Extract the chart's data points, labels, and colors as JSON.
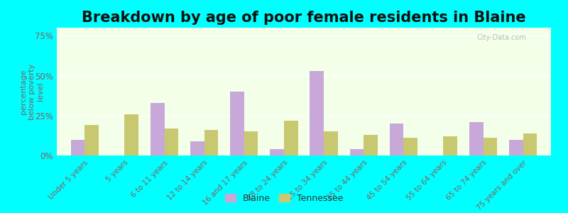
{
  "title": "Breakdown by age of poor female residents in Blaine",
  "ylabel": "percentage\nbelow poverty\nlevel",
  "categories": [
    "Under 5 years",
    "5 years",
    "6 to 11 years",
    "12 to 14 years",
    "16 and 17 years",
    "18 to 24 years",
    "25 to 34 years",
    "35 to 44 years",
    "45 to 54 years",
    "55 to 64 years",
    "65 to 74 years",
    "75 years and over"
  ],
  "blaine": [
    10,
    0,
    33,
    9,
    40,
    4,
    53,
    4,
    20,
    0,
    21,
    10
  ],
  "tennessee": [
    19,
    26,
    17,
    16,
    15,
    22,
    15,
    13,
    11,
    12,
    11,
    14
  ],
  "blaine_color": "#c8a8d8",
  "tennessee_color": "#c8c870",
  "outer_bg_color": "#00ffff",
  "ylim": [
    0,
    80
  ],
  "yticks": [
    0,
    25,
    50,
    75
  ],
  "ytick_labels": [
    "0%",
    "25%",
    "50%",
    "75%"
  ],
  "title_fontsize": 15,
  "bar_width": 0.35,
  "legend_blaine": "Blaine",
  "legend_tennessee": "Tennessee",
  "tick_color": "#806060",
  "label_color": "#806060",
  "title_color": "#111111",
  "watermark": "City-Data.com"
}
